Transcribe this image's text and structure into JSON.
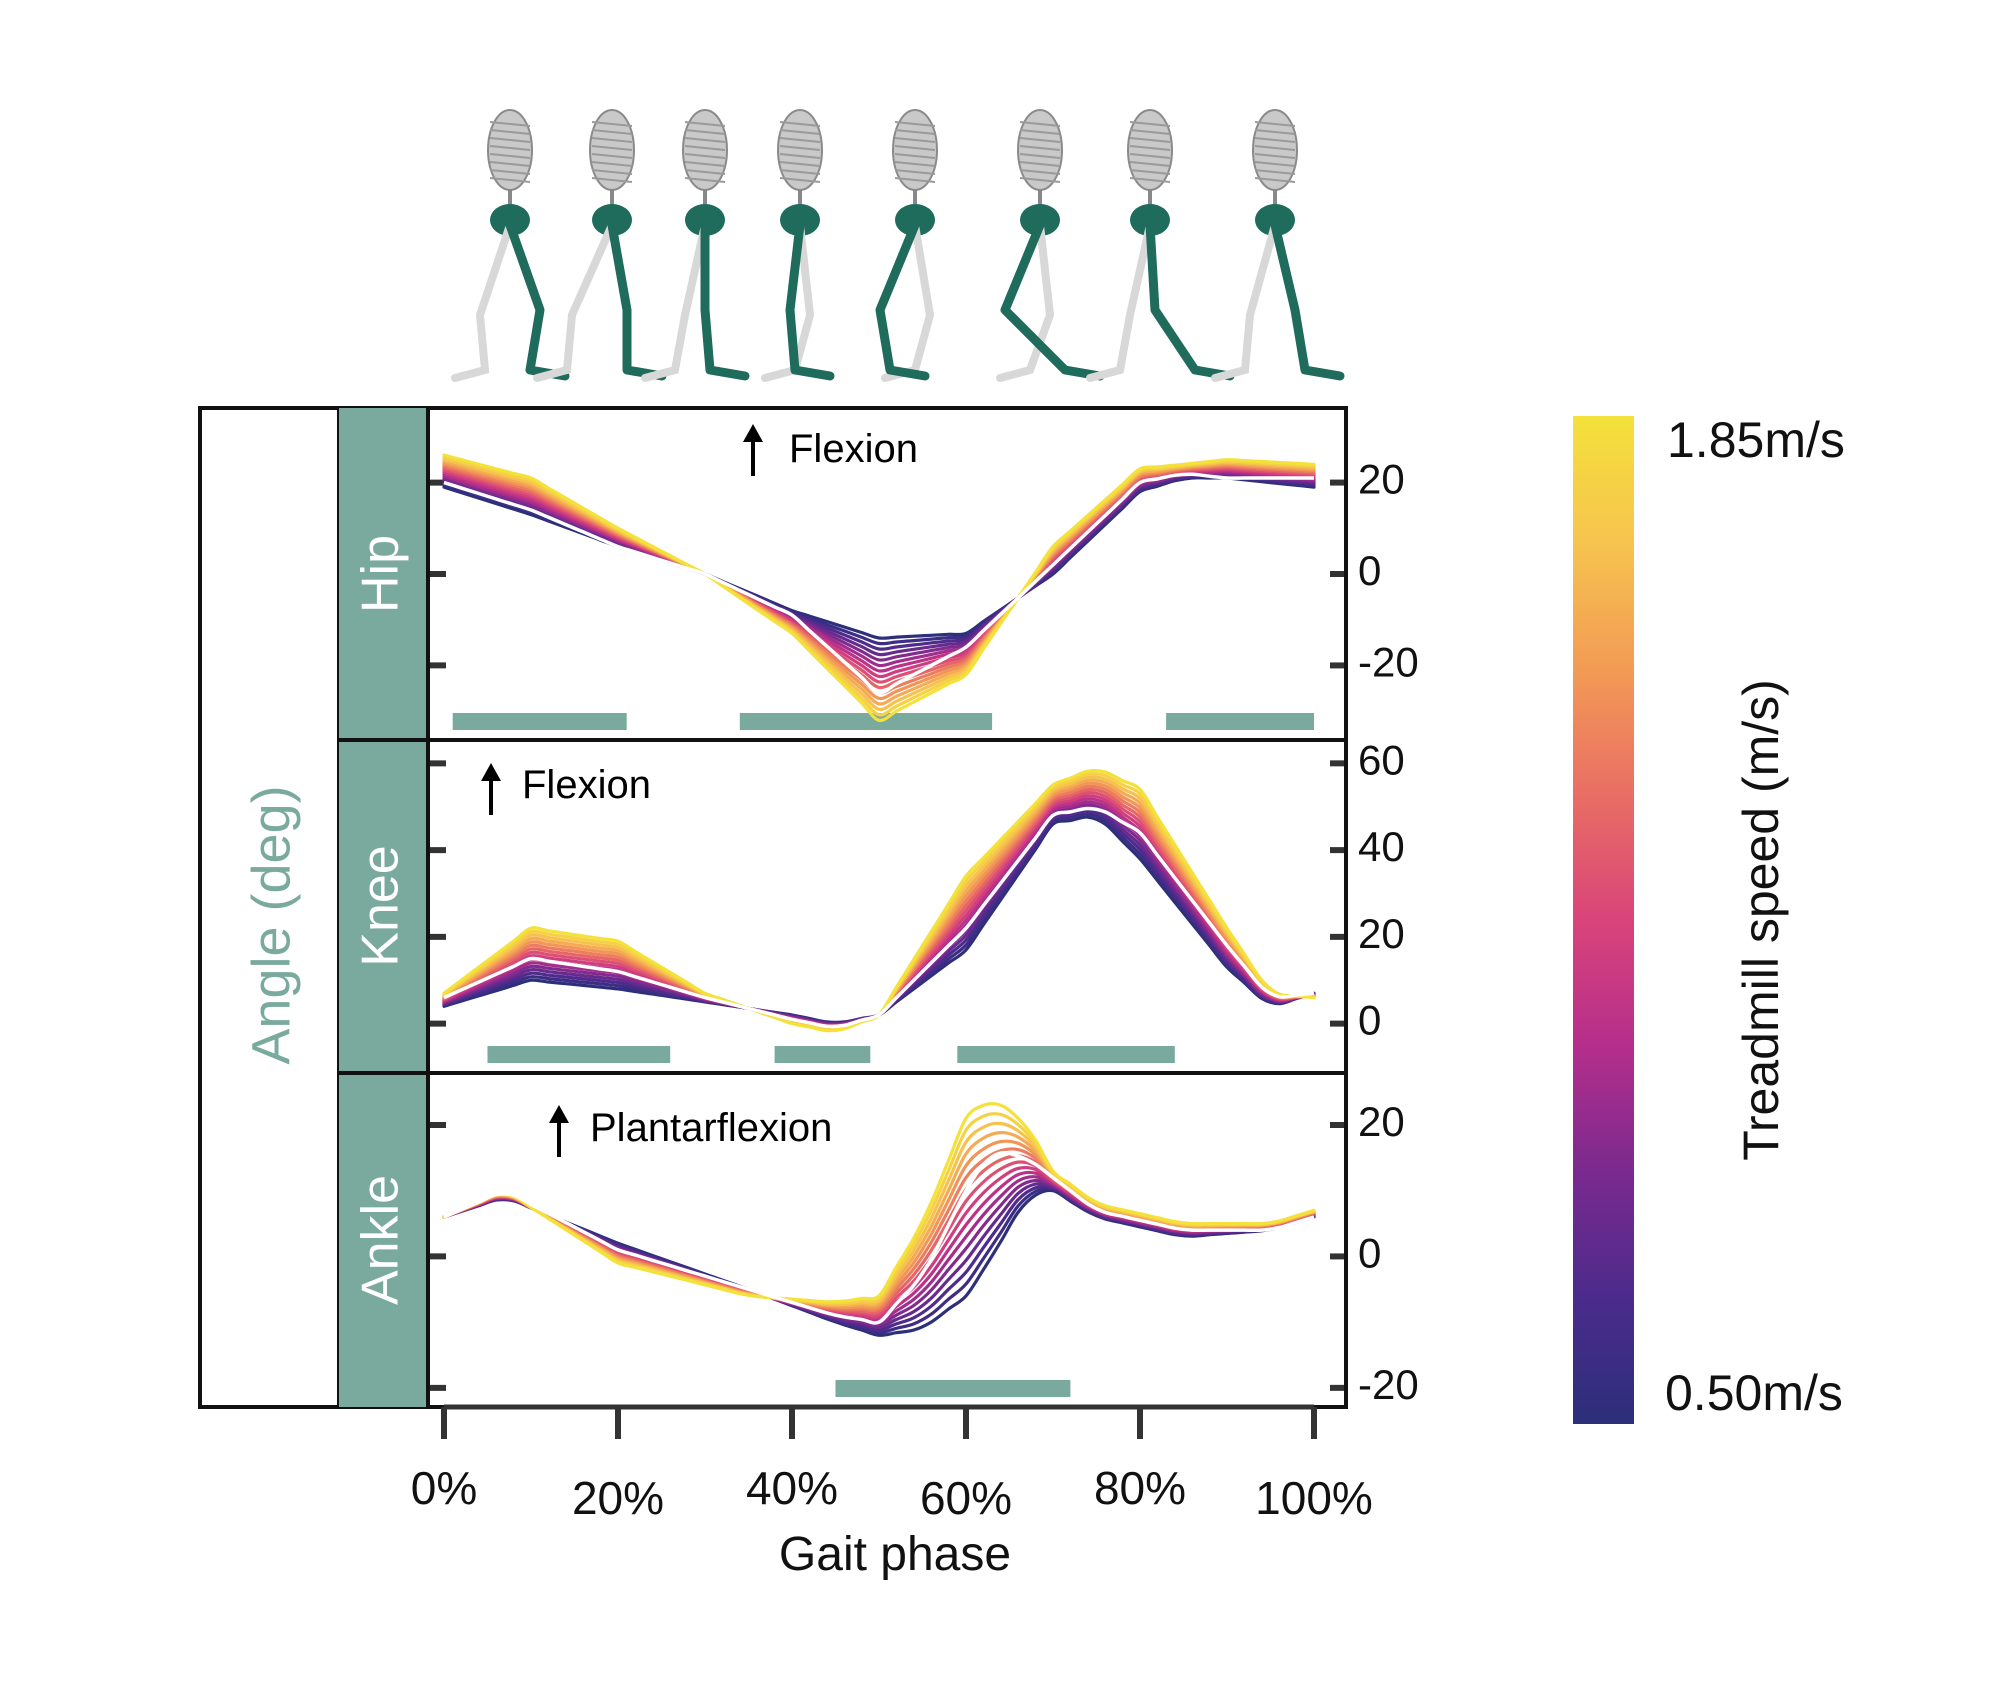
{
  "figure": {
    "y_axis_label": "Angle (deg)",
    "x_axis_label": "Gait phase",
    "x_tick_labels": [
      "0%",
      "20%",
      "40%",
      "60%",
      "80%",
      "100%"
    ]
  },
  "colorbar": {
    "label": "Treadmill speed (m/s)",
    "max_label": "1.85m/s",
    "min_label": "0.50m/s",
    "stops": [
      "#2c2f7a",
      "#4b2b8c",
      "#7a2a8e",
      "#b52e8c",
      "#d9447a",
      "#e96e64",
      "#f39b55",
      "#f6c44f",
      "#f4e13a"
    ]
  },
  "accent_color": "#7aaa9e",
  "skeletons": [
    "walker-frame-1",
    "walker-frame-2",
    "walker-frame-3",
    "walker-frame-4",
    "walker-frame-5",
    "walker-frame-6",
    "walker-frame-7",
    "walker-frame-8"
  ],
  "chart_data": [
    {
      "type": "line",
      "panel": "Hip",
      "annotation": "Flexion",
      "xlabel": "Gait phase",
      "ylabel": "Angle (deg)",
      "xlim": [
        0,
        100
      ],
      "ylim": [
        -35,
        35
      ],
      "yticks": [
        20,
        0,
        -20
      ],
      "ytick_labels": [
        "20",
        "0",
        "-20"
      ],
      "x": [
        0,
        10,
        20,
        30,
        40,
        50,
        60,
        70,
        80,
        85,
        90,
        100
      ],
      "speed_range": [
        0.5,
        1.85
      ],
      "series": [
        {
          "values": [
            19,
            13,
            6,
            0,
            -8,
            -14,
            -13,
            0,
            18,
            21,
            21,
            19
          ]
        },
        {
          "values": [
            26,
            21,
            10,
            0,
            -13,
            -32,
            -22,
            6,
            23,
            24,
            25,
            24
          ]
        }
      ],
      "highlight_values": [
        20,
        14,
        6,
        0,
        -9,
        -26,
        -16,
        2,
        20,
        22,
        21,
        21
      ],
      "bars": [
        [
          1,
          21
        ],
        [
          34,
          63
        ],
        [
          83,
          100
        ]
      ]
    },
    {
      "type": "line",
      "panel": "Knee",
      "annotation": "Flexion",
      "xlabel": "Gait phase",
      "ylabel": "Angle (deg)",
      "xlim": [
        0,
        100
      ],
      "ylim": [
        -10,
        64
      ],
      "yticks": [
        60,
        40,
        20,
        0
      ],
      "ytick_labels": [
        "60",
        "40",
        "20",
        "0"
      ],
      "x": [
        0,
        10,
        20,
        30,
        40,
        45,
        50,
        60,
        70,
        75,
        80,
        90,
        95,
        100
      ],
      "speed_range": [
        0.5,
        1.85
      ],
      "series": [
        {
          "values": [
            4,
            10,
            8,
            5,
            2,
            0,
            2,
            17,
            46,
            48,
            38,
            13,
            4,
            7
          ]
        },
        {
          "values": [
            7,
            22,
            19,
            7,
            0,
            -2,
            2,
            34,
            55,
            59,
            54,
            22,
            7,
            6
          ]
        }
      ],
      "highlight_values": [
        6,
        15,
        12,
        6,
        1,
        -1,
        2,
        22,
        48,
        50,
        44,
        18,
        6,
        7
      ],
      "bars": [
        [
          5,
          26
        ],
        [
          38,
          49
        ],
        [
          59,
          84
        ]
      ]
    },
    {
      "type": "line",
      "panel": "Ankle",
      "annotation": "Plantarflexion",
      "xlabel": "Gait phase",
      "ylabel": "Angle (deg)",
      "xlim": [
        0,
        100
      ],
      "ylim": [
        -22,
        27
      ],
      "yticks": [
        20,
        0,
        -20
      ],
      "ytick_labels": [
        "20",
        "0",
        "-20"
      ],
      "x": [
        0,
        7,
        20,
        35,
        45,
        50,
        55,
        60,
        63,
        67,
        70,
        75,
        85,
        95,
        100
      ],
      "speed_range": [
        0.5,
        1.85
      ],
      "series": [
        {
          "values": [
            6,
            9,
            2,
            -5,
            -10,
            -12,
            -11,
            -6,
            0,
            9,
            10,
            6,
            3,
            4,
            6
          ]
        },
        {
          "values": [
            6,
            10,
            -1,
            -6,
            -7,
            -6,
            5,
            21,
            24,
            20,
            13,
            8,
            5,
            5,
            7
          ]
        }
      ],
      "highlight_values": [
        6,
        10,
        1,
        -5,
        -9,
        -10,
        -3,
        10,
        16,
        15,
        12,
        7,
        4,
        4,
        6
      ],
      "bars": [
        [
          45,
          72
        ]
      ]
    }
  ]
}
